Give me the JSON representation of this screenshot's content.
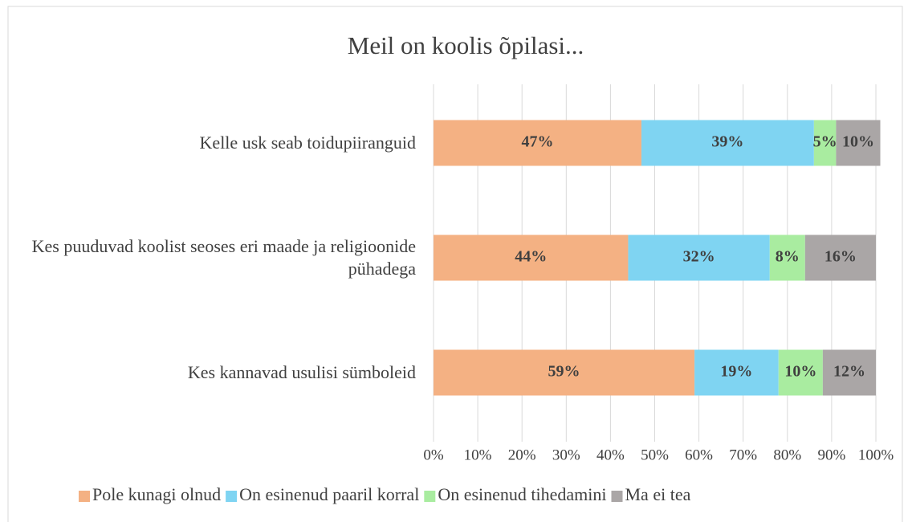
{
  "chart_data": {
    "type": "stacked_barh",
    "title": "Meil on koolis õpilasi...",
    "categories": [
      "Kelle usk seab toidupiiranguid",
      "Kes puuduvad koolist seoses eri maade ja religioonide pühadega",
      "Kes kannavad usulisi sümboleid"
    ],
    "series": [
      {
        "name": "Pole kunagi olnud",
        "color": "#f4b183",
        "values": [
          47,
          44,
          59
        ],
        "value_labels": [
          "47%",
          "44%",
          "59%"
        ]
      },
      {
        "name": "On esinenud paaril korral",
        "color": "#7fd4f2",
        "values": [
          39,
          32,
          19
        ],
        "value_labels": [
          "39%",
          "32%",
          "19%"
        ]
      },
      {
        "name": "On esinenud tihedamini",
        "color": "#a9eca0",
        "values": [
          5,
          8,
          10
        ],
        "value_labels": [
          "5%",
          "8%",
          "10%"
        ]
      },
      {
        "name": "Ma ei tea",
        "color": "#aaa6a6",
        "values": [
          10,
          16,
          12
        ],
        "value_labels": [
          "10%",
          "16%",
          "12%"
        ]
      }
    ],
    "xlim": [
      0,
      100
    ],
    "xticks": [
      {
        "value": 0,
        "label": "0%"
      },
      {
        "value": 10,
        "label": "10%"
      },
      {
        "value": 20,
        "label": "20%"
      },
      {
        "value": 30,
        "label": "30%"
      },
      {
        "value": 40,
        "label": "40%"
      },
      {
        "value": 50,
        "label": "50%"
      },
      {
        "value": 60,
        "label": "60%"
      },
      {
        "value": 70,
        "label": "70%"
      },
      {
        "value": 80,
        "label": "80%"
      },
      {
        "value": 90,
        "label": "90%"
      },
      {
        "value": 100,
        "label": "100%"
      }
    ],
    "grid": true,
    "legend": "bottom"
  }
}
